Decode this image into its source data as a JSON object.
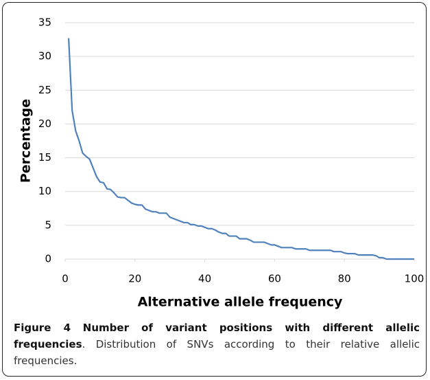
{
  "chart_data": {
    "type": "line",
    "xlabel": "Alternative allele frequency",
    "ylabel": "Percentage",
    "x": [
      1,
      2,
      3,
      4,
      5,
      6,
      7,
      8,
      9,
      10,
      11,
      12,
      13,
      14,
      15,
      16,
      17,
      18,
      19,
      20,
      21,
      22,
      23,
      24,
      25,
      26,
      27,
      28,
      29,
      30,
      31,
      32,
      33,
      34,
      35,
      36,
      37,
      38,
      39,
      40,
      41,
      42,
      43,
      44,
      45,
      46,
      47,
      48,
      49,
      50,
      51,
      52,
      53,
      54,
      55,
      56,
      57,
      58,
      59,
      60,
      61,
      62,
      63,
      64,
      65,
      66,
      67,
      68,
      69,
      70,
      71,
      72,
      73,
      74,
      75,
      76,
      77,
      78,
      79,
      80,
      81,
      82,
      83,
      84,
      85,
      86,
      87,
      88,
      89,
      90,
      91,
      92,
      93,
      94,
      95,
      96,
      97,
      98,
      99,
      100
    ],
    "series": [
      {
        "name": "Percentage",
        "color": "#4f81bd",
        "values": [
          32.7,
          22,
          19,
          17.5,
          15.7,
          15.2,
          14.8,
          13.5,
          12.2,
          11.4,
          11.3,
          10.4,
          10.3,
          9.8,
          9.2,
          9.1,
          9.1,
          8.7,
          8.3,
          8.1,
          8,
          8,
          7.4,
          7.2,
          7,
          7,
          6.8,
          6.8,
          6.8,
          6.2,
          6,
          5.8,
          5.6,
          5.4,
          5.4,
          5.1,
          5.1,
          4.9,
          4.9,
          4.7,
          4.5,
          4.5,
          4.3,
          4,
          3.8,
          3.8,
          3.4,
          3.4,
          3.4,
          3,
          3,
          3,
          2.8,
          2.5,
          2.5,
          2.5,
          2.5,
          2.3,
          2.1,
          2.1,
          1.9,
          1.7,
          1.7,
          1.7,
          1.7,
          1.5,
          1.5,
          1.5,
          1.5,
          1.3,
          1.3,
          1.3,
          1.3,
          1.3,
          1.3,
          1.3,
          1.1,
          1.1,
          1.1,
          0.9,
          0.8,
          0.8,
          0.8,
          0.6,
          0.6,
          0.6,
          0.6,
          0.6,
          0.5,
          0.2,
          0.2,
          0,
          0,
          0,
          0,
          0,
          0,
          0,
          0,
          0
        ]
      }
    ],
    "xlim": [
      0,
      100
    ],
    "xticks": [
      0,
      20,
      40,
      60,
      80,
      100
    ],
    "ylim": [
      0,
      35
    ],
    "yticks": [
      0,
      5,
      10,
      15,
      20,
      25,
      30,
      35
    ],
    "grid": true
  },
  "caption": {
    "label": "Figure 4",
    "title": "Number of variant positions with different allelic frequencies",
    "text": ". Distribution of SNVs according to their relative allelic frequencies."
  }
}
